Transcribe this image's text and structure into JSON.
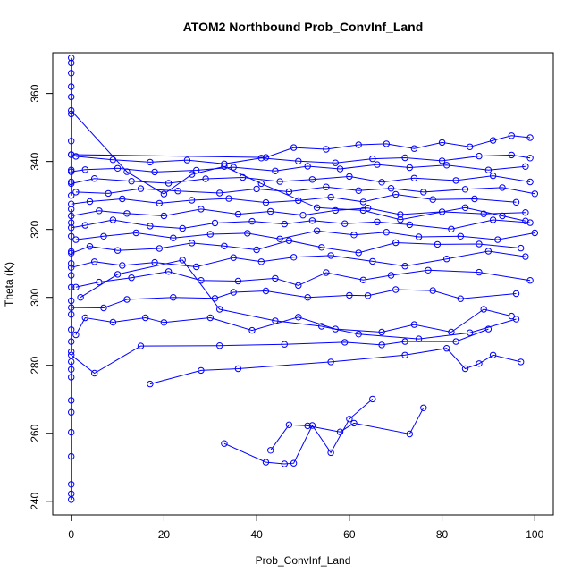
{
  "chart_data": {
    "type": "scatter",
    "title": "ATOM2 Northbound Prob_ConvInf_Land",
    "xlabel": "Prob_ConvInf_Land",
    "ylabel": "Theta (K)",
    "xlim": [
      -4,
      104
    ],
    "ylim": [
      236,
      372
    ],
    "x_ticks": [
      0,
      20,
      40,
      60,
      80,
      100
    ],
    "y_ticks": [
      240,
      260,
      280,
      300,
      320,
      340,
      360
    ],
    "grid": false,
    "legend": "none",
    "color": "#0000ff",
    "marker": "open-circle",
    "connected": true,
    "series": [
      {
        "x": [
          0,
          0,
          0,
          0,
          0,
          0,
          0,
          0,
          0,
          0
        ],
        "y": [
          240.5,
          242.2,
          245.0,
          253.2,
          260.3,
          266.2,
          269.7,
          276.5,
          278.8,
          281.1
        ]
      },
      {
        "x": [
          0,
          0,
          0,
          0,
          0,
          0,
          0,
          0,
          0,
          0,
          0,
          0
        ],
        "y": [
          284.0,
          287.0,
          290.5,
          295.0,
          299.0,
          303.0,
          306.5,
          310.0,
          313.5,
          318.0,
          322.0,
          326.0
        ]
      },
      {
        "x": [
          0,
          0,
          0,
          0,
          0,
          0,
          0,
          0,
          0,
          0,
          0
        ],
        "y": [
          330.0,
          334.0,
          337.5,
          342.0,
          346.0,
          354.0,
          359.0,
          362.0,
          366.0,
          369.0,
          370.5
        ]
      },
      {
        "x": [
          33,
          42,
          46,
          48,
          52,
          56,
          60,
          65
        ],
        "y": [
          257.0,
          251.5,
          251.0,
          251.2,
          262.3,
          254.3,
          264.2,
          270.1
        ]
      },
      {
        "x": [
          43,
          47,
          51,
          58,
          61,
          73,
          76
        ],
        "y": [
          255.0,
          262.5,
          262.2,
          260.4,
          263.0,
          259.8,
          267.5
        ]
      },
      {
        "x": [
          17,
          28,
          36,
          56,
          72,
          81,
          85,
          88,
          91,
          97
        ],
        "y": [
          274.5,
          278.5,
          279.0,
          281.0,
          283.0,
          285.0,
          279.0,
          280.5,
          283.0,
          281.0
        ]
      },
      {
        "x": [
          0,
          5,
          15,
          32,
          46,
          59,
          67,
          72,
          83,
          90
        ],
        "y": [
          283.0,
          277.7,
          285.7,
          285.8,
          286.2,
          286.8,
          286.0,
          287.0,
          287.0,
          290.7
        ]
      },
      {
        "x": [
          1,
          3,
          9,
          16,
          20,
          30,
          39,
          49,
          57,
          67,
          74,
          82,
          89,
          95
        ],
        "y": [
          289.0,
          294.0,
          292.7,
          294.0,
          292.6,
          294.0,
          290.3,
          294.2,
          290.7,
          289.8,
          292.0,
          289.8,
          296.5,
          294.5
        ]
      },
      {
        "x": [
          0,
          7,
          12,
          22,
          31,
          35,
          42,
          51,
          60,
          64,
          70,
          78,
          84,
          96
        ],
        "y": [
          297.0,
          296.9,
          299.4,
          300.0,
          299.7,
          301.5,
          301.9,
          300.0,
          300.6,
          300.5,
          302.3,
          302.0,
          299.6,
          301.1
        ]
      },
      {
        "x": [
          1,
          6,
          13,
          21,
          28,
          36,
          44,
          49,
          55,
          63,
          69,
          77,
          88,
          99
        ],
        "y": [
          303.0,
          304.5,
          305.8,
          307.6,
          305.0,
          304.8,
          305.6,
          303.5,
          307.3,
          305.1,
          306.5,
          308.0,
          307.4,
          305.0
        ]
      },
      {
        "x": [
          0,
          5,
          11,
          18,
          27,
          35,
          41,
          48,
          56,
          65,
          72,
          81,
          90,
          98
        ],
        "y": [
          308.8,
          310.5,
          309.4,
          310.3,
          309.0,
          311.7,
          310.5,
          311.8,
          312.3,
          310.6,
          309.2,
          311.3,
          313.6,
          312.0
        ]
      },
      {
        "x": [
          0,
          4,
          10,
          19,
          26,
          33,
          40,
          47,
          54,
          62,
          70,
          79,
          88,
          97
        ],
        "y": [
          313.0,
          315.0,
          313.8,
          314.4,
          316.0,
          315.1,
          314.0,
          316.7,
          314.7,
          313.1,
          316.1,
          315.6,
          315.7,
          314.5
        ]
      },
      {
        "x": [
          1,
          7,
          14,
          22,
          30,
          38,
          45,
          53,
          61,
          68,
          75,
          84,
          92,
          100
        ],
        "y": [
          317.0,
          318.0,
          319.0,
          317.5,
          318.6,
          318.9,
          317.2,
          319.6,
          318.4,
          319.2,
          317.8,
          318.0,
          317.0,
          319.0
        ]
      },
      {
        "x": [
          0,
          3,
          9,
          17,
          24,
          31,
          39,
          46,
          52,
          59,
          66,
          73,
          82,
          91,
          99
        ],
        "y": [
          320.5,
          321.2,
          322.8,
          321.0,
          320.3,
          321.9,
          322.4,
          321.6,
          322.6,
          321.7,
          322.2,
          321.4,
          320.1,
          322.8,
          322.0
        ]
      },
      {
        "x": [
          0,
          6,
          12,
          20,
          28,
          36,
          43,
          50,
          57,
          64,
          71,
          80,
          89,
          98
        ],
        "y": [
          324.0,
          325.5,
          324.7,
          324.0,
          326.0,
          324.5,
          325.3,
          324.2,
          325.6,
          326.3,
          324.4,
          325.2,
          324.6,
          325.0
        ]
      },
      {
        "x": [
          0,
          4,
          11,
          19,
          26,
          34,
          42,
          49,
          56,
          63,
          70,
          78,
          87,
          96
        ],
        "y": [
          327.5,
          328.2,
          329.0,
          327.7,
          328.6,
          329.1,
          327.9,
          328.5,
          329.5,
          328.1,
          330.3,
          328.8,
          329.0,
          328.0
        ]
      },
      {
        "x": [
          1,
          8,
          15,
          23,
          32,
          40,
          47,
          55,
          62,
          69,
          76,
          85,
          93,
          100
        ],
        "y": [
          331.0,
          330.6,
          332.0,
          331.3,
          330.7,
          331.9,
          331.1,
          332.5,
          331.4,
          332.1,
          331.0,
          331.8,
          332.3,
          330.5
        ]
      },
      {
        "x": [
          0,
          5,
          13,
          21,
          29,
          37,
          45,
          52,
          60,
          67,
          74,
          83,
          91,
          99
        ],
        "y": [
          333.5,
          335.0,
          334.2,
          333.6,
          334.9,
          335.3,
          334.1,
          334.7,
          335.6,
          333.9,
          335.1,
          334.4,
          335.8,
          334.0
        ]
      },
      {
        "x": [
          0,
          3,
          10,
          18,
          27,
          35,
          44,
          51,
          58,
          66,
          73,
          81,
          90,
          98
        ],
        "y": [
          337.0,
          337.6,
          338.0,
          336.9,
          337.4,
          338.3,
          337.2,
          338.6,
          337.8,
          339.1,
          338.2,
          338.9,
          337.5,
          338.5
        ]
      },
      {
        "x": [
          1,
          9,
          17,
          25,
          33,
          41,
          49,
          57,
          65,
          72,
          80,
          88,
          95,
          99
        ],
        "y": [
          341.5,
          340.5,
          339.8,
          340.4,
          339.3,
          341.0,
          340.1,
          339.6,
          340.8,
          341.1,
          340.2,
          341.6,
          341.9,
          341.0
        ]
      },
      {
        "x": [
          0,
          42,
          48,
          55,
          62,
          68,
          74,
          80,
          86,
          91,
          95,
          99
        ],
        "y": [
          342.0,
          341.2,
          344.1,
          343.6,
          344.9,
          345.2,
          343.8,
          345.6,
          344.3,
          346.2,
          347.6,
          347.0
        ]
      },
      {
        "x": [
          0,
          12,
          20,
          26,
          33,
          41,
          53,
          63,
          71,
          85,
          93,
          98
        ],
        "y": [
          355.0,
          337.0,
          330.4,
          336.2,
          338.5,
          333.5,
          326.4,
          325.6,
          322.9,
          326.4,
          324.0,
          322.5
        ]
      },
      {
        "x": [
          2,
          10,
          24,
          32,
          44,
          54,
          62,
          75,
          86,
          96
        ],
        "y": [
          300.0,
          306.8,
          311.0,
          296.5,
          293.1,
          291.5,
          289.2,
          287.8,
          289.6,
          293.6
        ]
      }
    ]
  }
}
